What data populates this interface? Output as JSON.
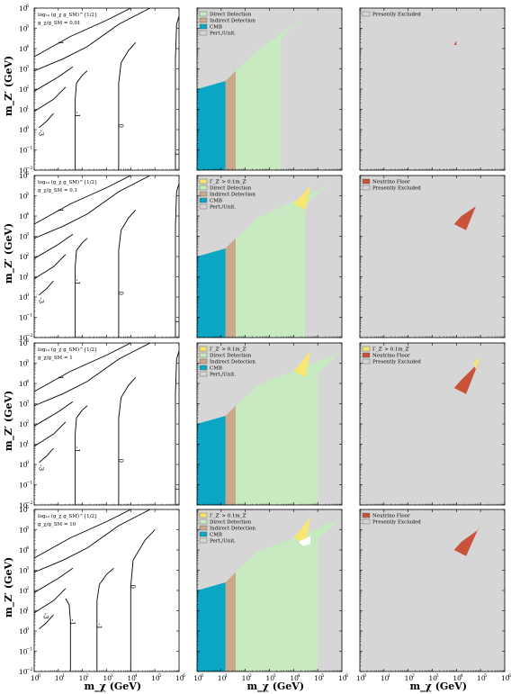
{
  "colors": {
    "direct_detection": "#c8eac0",
    "indirect_detection": "#c9a98a",
    "cmb": "#0aa6c4",
    "pert_unit": "#d6d6d6",
    "width": "#f6e772",
    "neutrino_floor": "#c8523a",
    "presently_excluded": "#d6d6d6"
  },
  "axes": {
    "xlabel": "m_χ (GeV)",
    "ylabel": "m_Z′ (GeV)",
    "x_ticks": [
      "10",
      "10",
      "10",
      "10",
      "10",
      "10",
      "10"
    ],
    "x_tick_exps": [
      "0",
      "1",
      "2",
      "3",
      "4",
      "5",
      "6"
    ],
    "y_ticks": [
      "10",
      "10",
      "10",
      "10",
      "10",
      "10",
      "10",
      "10",
      "10"
    ],
    "y_tick_exps": [
      "−2",
      "−1",
      "0",
      "1",
      "2",
      "3",
      "4",
      "5",
      "6"
    ],
    "xlim_log10": [
      0,
      6
    ],
    "ylim_log10": [
      -2,
      6
    ]
  },
  "rows": [
    {
      "ratio_label": "g_χ/g_SM = 0.01",
      "contour_title": "log₁₀ (g_χ g_SM)^{1/2}",
      "contour_levels": [
        "-3",
        "-2",
        "-1",
        "0",
        "1"
      ],
      "middle_legend": [
        "Direct Detection",
        "Indirect Detection",
        "CMB",
        "Pert./Unit."
      ],
      "right_legend": [
        "Presently Excluded"
      ]
    },
    {
      "ratio_label": "g_χ/g_SM = 0.1",
      "contour_title": "log₁₀ (g_χ g_SM)^{1/2}",
      "contour_levels": [
        "-3",
        "-2",
        "-1",
        "0",
        "1"
      ],
      "middle_legend": [
        "Γ_Z′ > 0.1m_Z′",
        "Direct Detection",
        "Indirect Detection",
        "CMB",
        "Pert./Unit."
      ],
      "right_legend": [
        "Neutrino Floor",
        "Presently Excluded"
      ]
    },
    {
      "ratio_label": "g_χ/g_SM = 1",
      "contour_title": "log₁₀ (g_χ g_SM)^{1/2}",
      "contour_levels": [
        "-3",
        "-2",
        "-1",
        "0",
        "1"
      ],
      "middle_legend": [
        "Γ_Z′ > 0.1m_Z′",
        "Direct Detection",
        "Indirect Detection",
        "CMB",
        "Pert./Unit."
      ],
      "right_legend": [
        "Γ_Z′ > 0.1m_Z′",
        "Neutrino Floor",
        "Presently Excluded"
      ]
    },
    {
      "ratio_label": "g_χ/g_SM = 10",
      "contour_title": "log₁₀ (g_χ g_SM)^{1/2}",
      "contour_levels": [
        "-3",
        "-2",
        "-1",
        "0"
      ],
      "middle_legend": [
        "Γ_Z′ > 0.1m_Z′",
        "Direct Detection",
        "Indirect Detection",
        "CMB",
        "Pert./Unit."
      ],
      "right_legend": [
        "Neutrino Floor",
        "Presently Excluded"
      ]
    }
  ],
  "chart_data": {
    "type": "area",
    "xlabel": "m_χ (GeV)",
    "ylabel": "m_Z′ (GeV)",
    "x_scale": "log",
    "y_scale": "log",
    "xlim": [
      1,
      1000000
    ],
    "ylim": [
      0.01,
      1000000
    ],
    "grid": false,
    "panels": [
      {
        "row": 0,
        "column": "left",
        "kind": "contour",
        "levels": [
          -3,
          -2,
          -1,
          0,
          1
        ]
      },
      {
        "row": 0,
        "column": "middle",
        "kind": "exclusion",
        "regions": [
          "CMB",
          "Indirect Detection",
          "Direct Detection",
          "Pert./Unit."
        ],
        "cmb_max_mx": 15,
        "indirect_max_mx": 40,
        "direct_max_mx": 3000
      },
      {
        "row": 0,
        "column": "right",
        "kind": "allowed",
        "allowed_island_mx": [
          8000,
          10000
        ],
        "allowed_island_mz": [
          15000,
          25000
        ]
      },
      {
        "row": 1,
        "column": "left",
        "kind": "contour",
        "levels": [
          -3,
          -2,
          -1,
          0,
          1
        ]
      },
      {
        "row": 1,
        "column": "middle",
        "kind": "exclusion",
        "regions": [
          "Γ_Z′ > 0.1m_Z′",
          "CMB",
          "Indirect Detection",
          "Direct Detection",
          "Pert./Unit."
        ],
        "cmb_max_mx": 15,
        "indirect_max_mx": 40,
        "direct_max_mx": 30000
      },
      {
        "row": 1,
        "column": "right",
        "kind": "allowed",
        "neutrino_floor_mx": [
          8000,
          80000
        ],
        "neutrino_floor_mz": [
          2000,
          60000
        ]
      },
      {
        "row": 2,
        "column": "left",
        "kind": "contour",
        "levels": [
          -3,
          -2,
          -1,
          0,
          1
        ]
      },
      {
        "row": 2,
        "column": "middle",
        "kind": "exclusion",
        "regions": [
          "Γ_Z′ > 0.1m_Z′",
          "CMB",
          "Indirect Detection",
          "Direct Detection",
          "Pert./Unit."
        ],
        "cmb_max_mx": 15,
        "indirect_max_mx": 40,
        "direct_max_mx": 100000
      },
      {
        "row": 2,
        "column": "right",
        "kind": "allowed",
        "neutrino_floor_mx": [
          8000,
          100000
        ],
        "neutrino_floor_mz": [
          3000,
          200000
        ]
      },
      {
        "row": 3,
        "column": "left",
        "kind": "contour",
        "levels": [
          -3,
          -2,
          -1,
          0
        ]
      },
      {
        "row": 3,
        "column": "middle",
        "kind": "exclusion",
        "regions": [
          "Γ_Z′ > 0.1m_Z′",
          "CMB",
          "Indirect Detection",
          "Direct Detection",
          "Pert./Unit."
        ],
        "cmb_max_mx": 15,
        "indirect_max_mx": 40,
        "direct_max_mx": 100000
      },
      {
        "row": 3,
        "column": "right",
        "kind": "allowed",
        "neutrino_floor_mx": [
          8000,
          100000
        ],
        "neutrino_floor_mz": [
          5000,
          200000
        ]
      }
    ]
  }
}
